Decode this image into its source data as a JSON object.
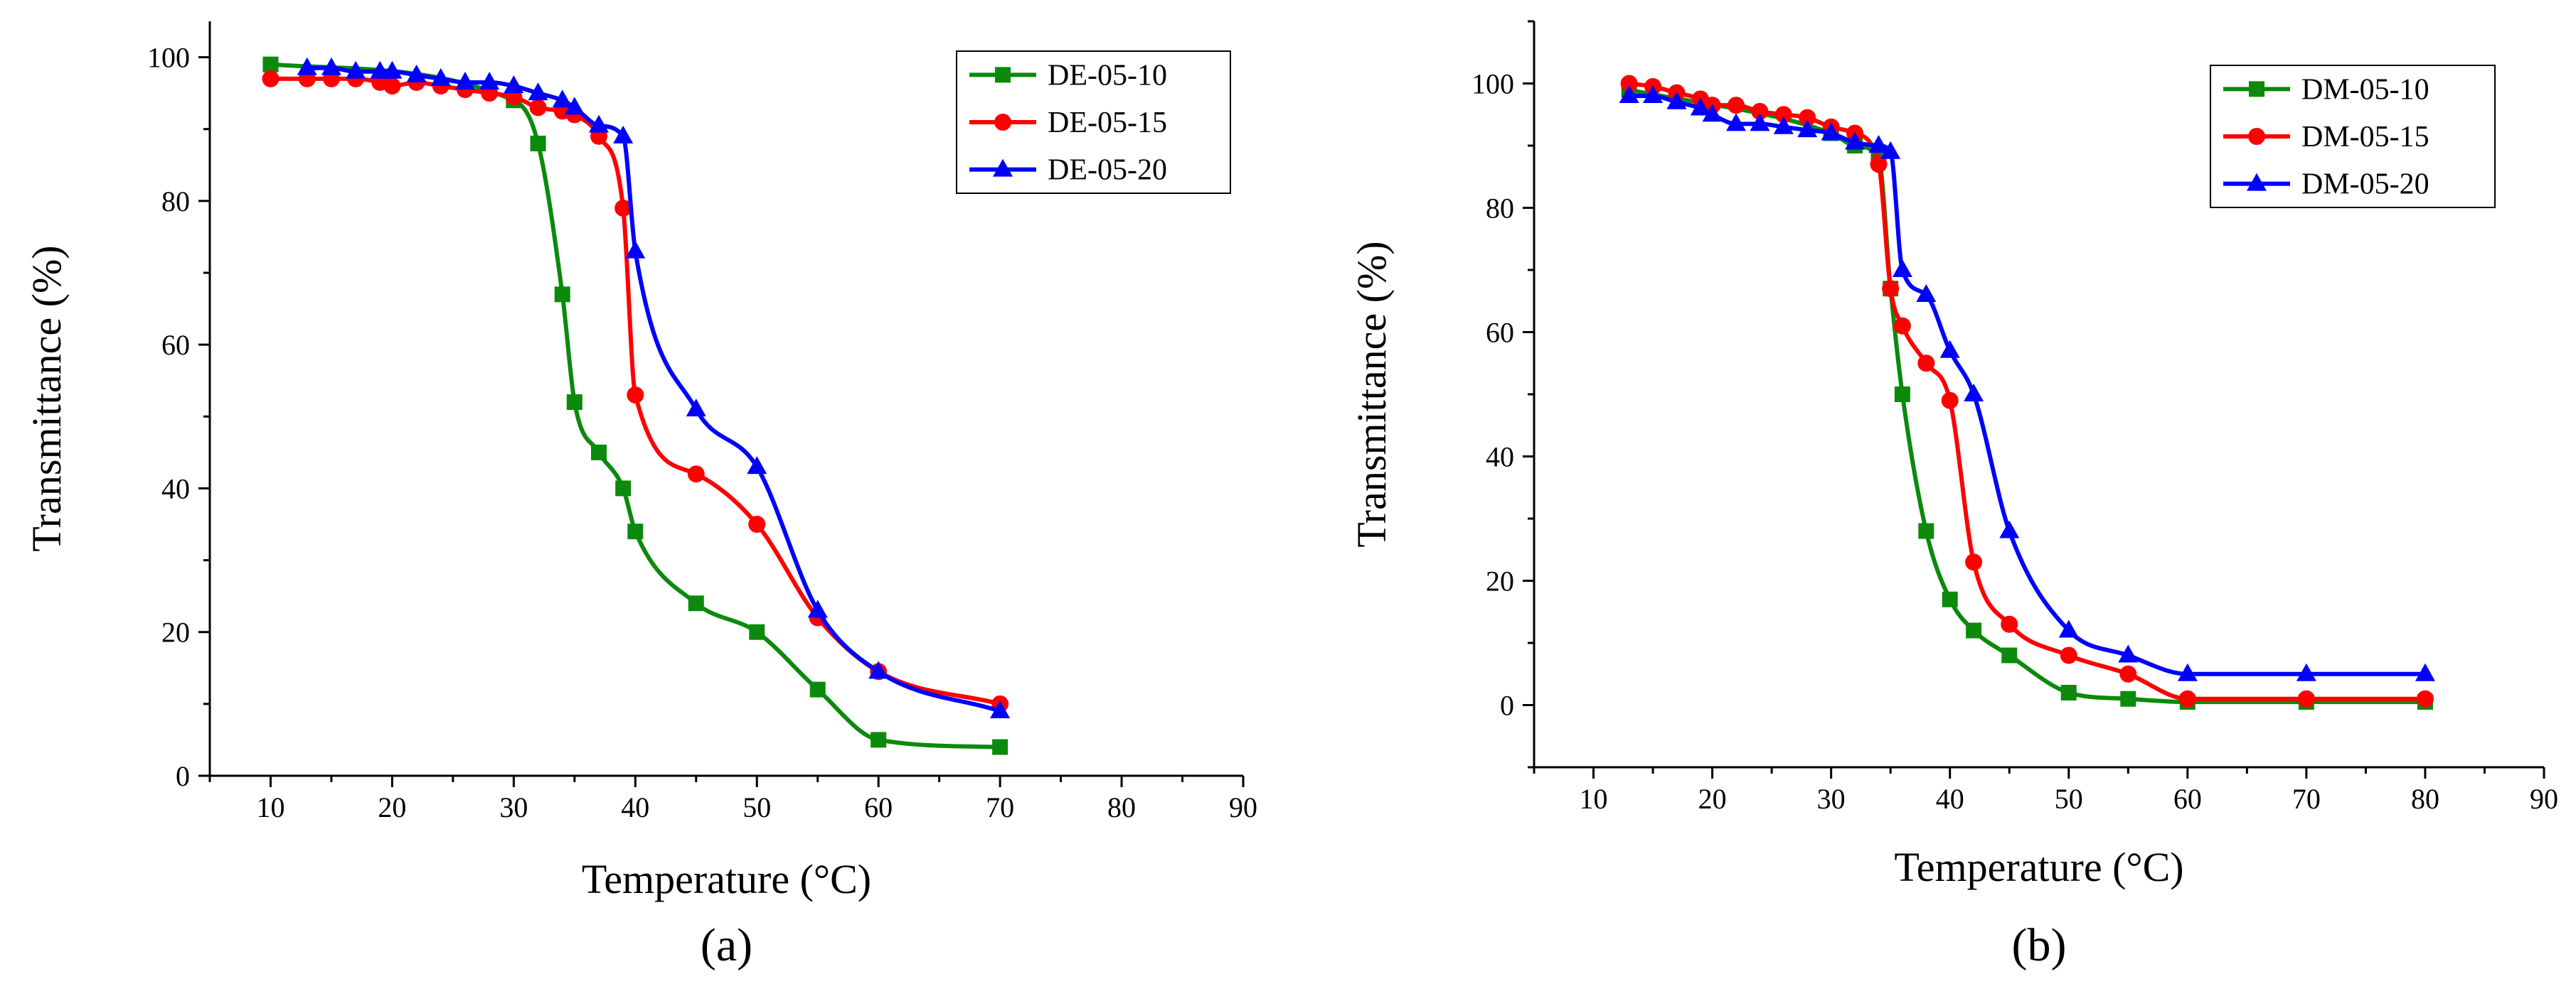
{
  "chart_data": [
    {
      "type": "line",
      "panel_label": "(a)",
      "xlabel": "Temperature (°C)",
      "ylabel": "Transmittance (%)",
      "xlim": [
        5,
        90
      ],
      "ylim": [
        0,
        105
      ],
      "xticks": [
        10,
        20,
        30,
        40,
        50,
        60,
        70,
        80,
        90
      ],
      "yticks": [
        0,
        20,
        40,
        60,
        80,
        100
      ],
      "grid": false,
      "legend_position": "top-right",
      "series": [
        {
          "name": "DE-05-10",
          "color": "#0b8a0b",
          "marker": "square",
          "x": [
            10,
            30,
            32,
            34,
            35,
            37,
            39,
            40,
            45,
            50,
            55,
            60,
            70
          ],
          "y": [
            99,
            94,
            88,
            67,
            52,
            45,
            40,
            34,
            24,
            20,
            12,
            5,
            4
          ]
        },
        {
          "name": "DE-05-15",
          "color": "#ff0000",
          "marker": "circle",
          "x": [
            10,
            13,
            15,
            17,
            19,
            20,
            22,
            24,
            26,
            28,
            30,
            32,
            34,
            35,
            37,
            39,
            40,
            45,
            50,
            55,
            60,
            70
          ],
          "y": [
            97,
            97,
            97,
            97,
            96.5,
            96,
            96.5,
            96,
            95.5,
            95,
            94.5,
            93,
            92.5,
            92,
            89,
            79,
            53,
            42,
            35,
            22,
            14.5,
            10
          ]
        },
        {
          "name": "DE-05-20",
          "color": "#0000ff",
          "marker": "triangle",
          "x": [
            13,
            15,
            17,
            19,
            20,
            22,
            24,
            26,
            28,
            30,
            32,
            34,
            35,
            37,
            39,
            40,
            45,
            50,
            55,
            60,
            70
          ],
          "y": [
            98.5,
            98.5,
            98,
            98,
            98,
            97.5,
            97,
            96.5,
            96.5,
            96,
            95,
            94,
            93,
            90.5,
            89,
            73,
            51,
            43,
            23,
            14.5,
            9
          ]
        }
      ]
    },
    {
      "type": "line",
      "panel_label": "(b)",
      "xlabel": "Temperature (°C)",
      "ylabel": "Transmittance (%)",
      "xlim": [
        5,
        90
      ],
      "ylim": [
        -10,
        110
      ],
      "xticks": [
        10,
        20,
        30,
        40,
        50,
        60,
        70,
        80,
        90
      ],
      "yticks": [
        0,
        20,
        40,
        60,
        80,
        100
      ],
      "grid": false,
      "legend_position": "top-right",
      "series": [
        {
          "name": "DM-05-10",
          "color": "#0b8a0b",
          "marker": "square",
          "x": [
            13,
            30,
            32,
            34,
            35,
            36,
            38,
            40,
            42,
            45,
            50,
            55,
            60,
            70,
            80
          ],
          "y": [
            99,
            92,
            90,
            88,
            67,
            50,
            28,
            17,
            12,
            8,
            2,
            1,
            0.5,
            0.5,
            0.5
          ]
        },
        {
          "name": "DM-05-15",
          "color": "#ff0000",
          "marker": "circle",
          "x": [
            13,
            15,
            17,
            19,
            20,
            22,
            24,
            26,
            28,
            30,
            32,
            34,
            35,
            36,
            38,
            40,
            42,
            45,
            50,
            55,
            60,
            70,
            80
          ],
          "y": [
            100,
            99.5,
            98.5,
            97.5,
            96.5,
            96.5,
            95.5,
            95,
            94.5,
            93,
            92,
            87,
            67,
            61,
            55,
            49,
            23,
            13,
            8,
            5,
            1,
            1,
            1
          ]
        },
        {
          "name": "DM-05-20",
          "color": "#0000ff",
          "marker": "triangle",
          "x": [
            13,
            15,
            17,
            19,
            20,
            22,
            24,
            26,
            28,
            30,
            32,
            34,
            35,
            36,
            38,
            40,
            42,
            45,
            50,
            55,
            60,
            70,
            80
          ],
          "y": [
            98,
            98,
            97,
            96,
            95,
            93.5,
            93.5,
            93,
            92.5,
            92,
            90.5,
            90,
            89,
            70,
            66,
            57,
            50,
            28,
            12,
            8,
            5,
            5,
            5
          ]
        }
      ]
    }
  ]
}
